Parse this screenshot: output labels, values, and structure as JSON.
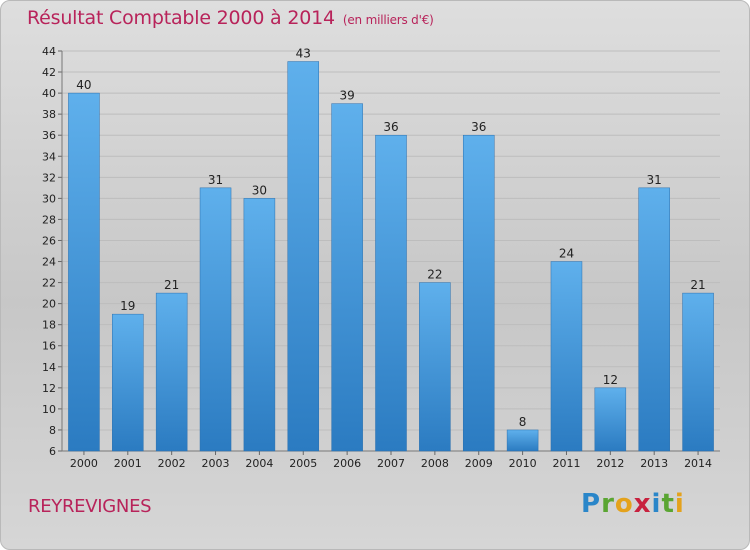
{
  "chart_data": {
    "type": "bar",
    "title": "Résultat Comptable 2000 à 2014",
    "subtitle": "(en milliers d'€)",
    "categories": [
      "2000",
      "2001",
      "2002",
      "2003",
      "2004",
      "2005",
      "2006",
      "2007",
      "2008",
      "2009",
      "2010",
      "2011",
      "2012",
      "2013",
      "2014"
    ],
    "values": [
      40,
      19,
      21,
      31,
      30,
      43,
      39,
      36,
      22,
      36,
      8,
      24,
      12,
      31,
      21
    ],
    "ylim": [
      6,
      44
    ],
    "yticks": [
      6,
      8,
      10,
      12,
      14,
      16,
      18,
      20,
      22,
      24,
      26,
      28,
      30,
      32,
      34,
      36,
      38,
      40,
      42,
      44
    ],
    "grid": true,
    "bar_color": "#3a8fd6"
  },
  "footer": {
    "commune": "REYREVIGNES",
    "logo": "Proxiti"
  }
}
